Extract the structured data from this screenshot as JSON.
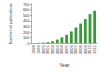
{
  "chart_data": {
    "type": "bar",
    "x_label": "Year",
    "y_label": "Number of publications",
    "categories": [
      "1998",
      "1999",
      "2000",
      "2001",
      "2002",
      "2003",
      "2004",
      "2005",
      "2006",
      "2007",
      "2008",
      "2009",
      "2010",
      "2011"
    ],
    "values": [
      3,
      6,
      10,
      18,
      35,
      65,
      105,
      150,
      210,
      280,
      350,
      430,
      520,
      580
    ],
    "color": "#3a9a3a",
    "ylim": [
      0,
      700
    ],
    "yticks": [
      0,
      100,
      200,
      300,
      400,
      500,
      600,
      700
    ],
    "grid": false
  }
}
